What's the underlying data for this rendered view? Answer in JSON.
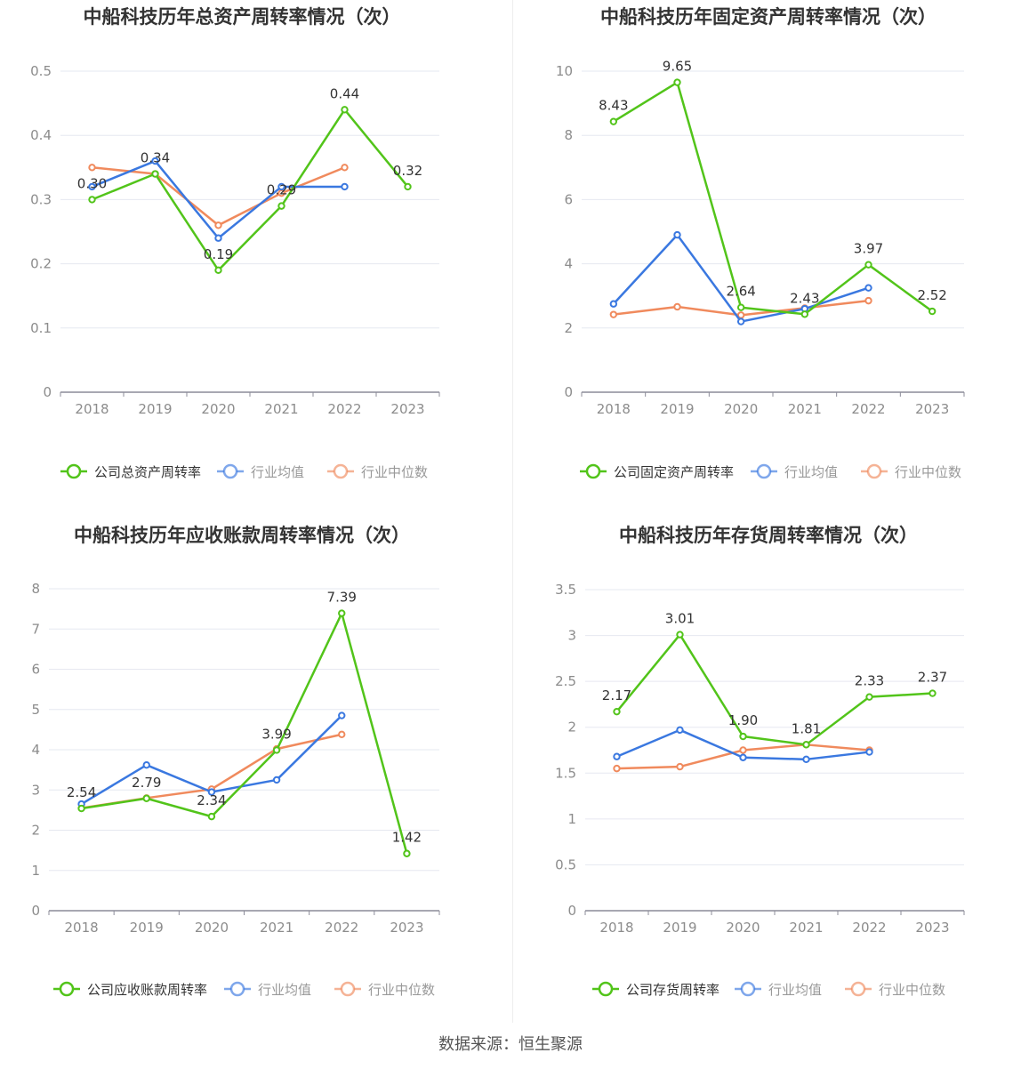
{
  "source_text": "数据来源：恒生聚源",
  "colors": {
    "company": "#52c41a",
    "average": "#3a78e0",
    "median": "#f08a5d",
    "grid": "#e6e8f0",
    "axis": "#8c8c99",
    "tick": "#8c8c8c",
    "title": "#333333"
  },
  "chart_data": [
    {
      "type": "line",
      "title": "中船科技历年总资产周转率情况（次）",
      "categories": [
        "2018",
        "2019",
        "2020",
        "2021",
        "2022",
        "2023"
      ],
      "ylim": [
        0,
        0.5
      ],
      "yticks": [
        "0",
        "0.1",
        "0.2",
        "0.3",
        "0.4",
        "0.5"
      ],
      "grid": true,
      "legend_position": "bottom",
      "series": [
        {
          "name": "公司总资产周转率",
          "role": "company",
          "values": [
            0.3,
            0.34,
            0.19,
            0.29,
            0.44,
            0.32
          ],
          "labels": [
            "0.30",
            "0.34",
            "0.19",
            "0.29",
            "0.44",
            "0.32"
          ]
        },
        {
          "name": "行业均值",
          "role": "average",
          "values": [
            0.32,
            0.36,
            0.24,
            0.32,
            0.32,
            null
          ]
        },
        {
          "name": "行业中位数",
          "role": "median",
          "values": [
            0.35,
            0.34,
            0.26,
            0.31,
            0.35,
            null
          ]
        }
      ]
    },
    {
      "type": "line",
      "title": "中船科技历年固定资产周转率情况（次）",
      "categories": [
        "2018",
        "2019",
        "2020",
        "2021",
        "2022",
        "2023"
      ],
      "ylim": [
        0,
        10
      ],
      "yticks": [
        "0",
        "2",
        "4",
        "6",
        "8",
        "10"
      ],
      "grid": true,
      "legend_position": "bottom",
      "series": [
        {
          "name": "公司固定资产周转率",
          "role": "company",
          "values": [
            8.43,
            9.65,
            2.64,
            2.43,
            3.97,
            2.52
          ],
          "labels": [
            "8.43",
            "9.65",
            "2.64",
            "2.43",
            "3.97",
            "2.52"
          ]
        },
        {
          "name": "行业均值",
          "role": "average",
          "values": [
            2.75,
            4.9,
            2.2,
            2.6,
            3.25,
            null
          ]
        },
        {
          "name": "行业中位数",
          "role": "median",
          "values": [
            2.42,
            2.66,
            2.4,
            2.62,
            2.85,
            null
          ]
        }
      ]
    },
    {
      "type": "line",
      "title": "中船科技历年应收账款周转率情况（次）",
      "categories": [
        "2018",
        "2019",
        "2020",
        "2021",
        "2022",
        "2023"
      ],
      "ylim": [
        0,
        8
      ],
      "yticks": [
        "0",
        "1",
        "2",
        "3",
        "4",
        "5",
        "6",
        "7",
        "8"
      ],
      "grid": true,
      "legend_position": "bottom",
      "series": [
        {
          "name": "公司应收账款周转率",
          "role": "company",
          "values": [
            2.54,
            2.79,
            2.34,
            3.99,
            7.39,
            1.42
          ],
          "labels": [
            "2.54",
            "2.79",
            "2.34",
            "3.99",
            "7.39",
            "1.42"
          ]
        },
        {
          "name": "行业均值",
          "role": "average",
          "values": [
            2.65,
            3.62,
            2.95,
            3.25,
            4.85,
            null
          ]
        },
        {
          "name": "行业中位数",
          "role": "median",
          "values": [
            2.55,
            2.8,
            3.02,
            4.02,
            4.38,
            null
          ]
        }
      ]
    },
    {
      "type": "line",
      "title": "中船科技历年存货周转率情况（次）",
      "categories": [
        "2018",
        "2019",
        "2020",
        "2021",
        "2022",
        "2023"
      ],
      "ylim": [
        0,
        3.5
      ],
      "yticks": [
        "0",
        "0.5",
        "1",
        "1.5",
        "2",
        "2.5",
        "3",
        "3.5"
      ],
      "grid": true,
      "legend_position": "bottom",
      "series": [
        {
          "name": "公司存货周转率",
          "role": "company",
          "values": [
            2.17,
            3.01,
            1.9,
            1.81,
            2.33,
            2.37
          ],
          "labels": [
            "2.17",
            "3.01",
            "1.90",
            "1.81",
            "2.33",
            "2.37"
          ]
        },
        {
          "name": "行业均值",
          "role": "average",
          "values": [
            1.68,
            1.97,
            1.67,
            1.65,
            1.73,
            null
          ]
        },
        {
          "name": "行业中位数",
          "role": "median",
          "values": [
            1.55,
            1.57,
            1.75,
            1.81,
            1.75,
            null
          ]
        }
      ]
    }
  ]
}
